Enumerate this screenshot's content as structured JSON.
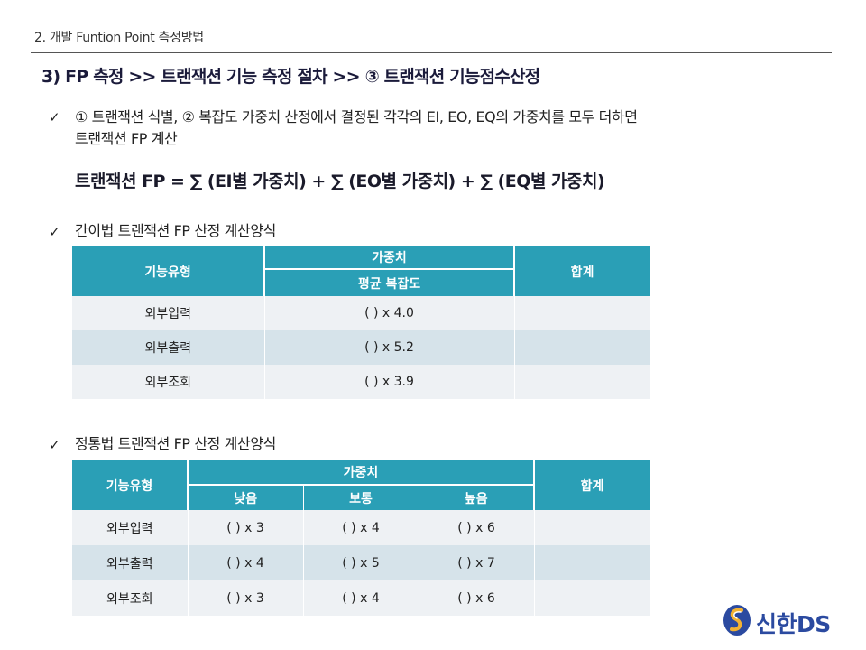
{
  "header": {
    "title": "2. 개발 Funtion Point 측정방법"
  },
  "section_title": "3) FP 측정 >> 트랜잭션 기능 측정 절차 >> ③ 트랜잭션 기능점수산정",
  "check_mark": "✓",
  "bullet1": {
    "line1": "① 트랜잭션 식별, ② 복잡도 가중치 산정에서 결정된 각각의 EI, EO, EQ의 가중치를 모두 더하면",
    "line2": "트랜잭션 FP 계산"
  },
  "formula": "트랜잭션 FP = ∑ (EI별 가중치) + ∑ (EO별 가중치) + ∑ (EQ별 가중치)",
  "bullet2": "간이법 트랜잭션 FP 산정 계산양식",
  "table1": {
    "col_type": "기능유형",
    "col_weight": "가중치",
    "sub_avg": "평균 복잡도",
    "col_total": "합계",
    "rows": [
      {
        "type": "외부입력",
        "avg": "(      ) x 4.0",
        "total": ""
      },
      {
        "type": "외부출력",
        "avg": "(      ) x 5.2",
        "total": ""
      },
      {
        "type": "외부조회",
        "avg": "(      ) x 3.9",
        "total": ""
      }
    ]
  },
  "bullet3": "정통법 트랜잭션 FP 산정 계산양식",
  "table2": {
    "col_type": "기능유형",
    "col_weight": "가중치",
    "sub_low": "낮음",
    "sub_mid": "보통",
    "sub_high": "높음",
    "col_total": "합계",
    "rows": [
      {
        "type": "외부입력",
        "low": "(      ) x 3",
        "mid": "(      ) x 4",
        "high": "(      ) x 6",
        "total": ""
      },
      {
        "type": "외부출력",
        "low": "(      ) x 4",
        "mid": "(      ) x 5",
        "high": "(      ) x 7",
        "total": ""
      },
      {
        "type": "외부조회",
        "low": "(      ) x 3",
        "mid": "(      ) x 4",
        "high": "(      ) x 6",
        "total": ""
      }
    ]
  },
  "logo": {
    "text": "신한DS",
    "color": "#2b4aa0"
  },
  "colors": {
    "table_header": "#2a9fb6",
    "row_light": "#eef1f4",
    "row_dark": "#d6e3ea"
  }
}
